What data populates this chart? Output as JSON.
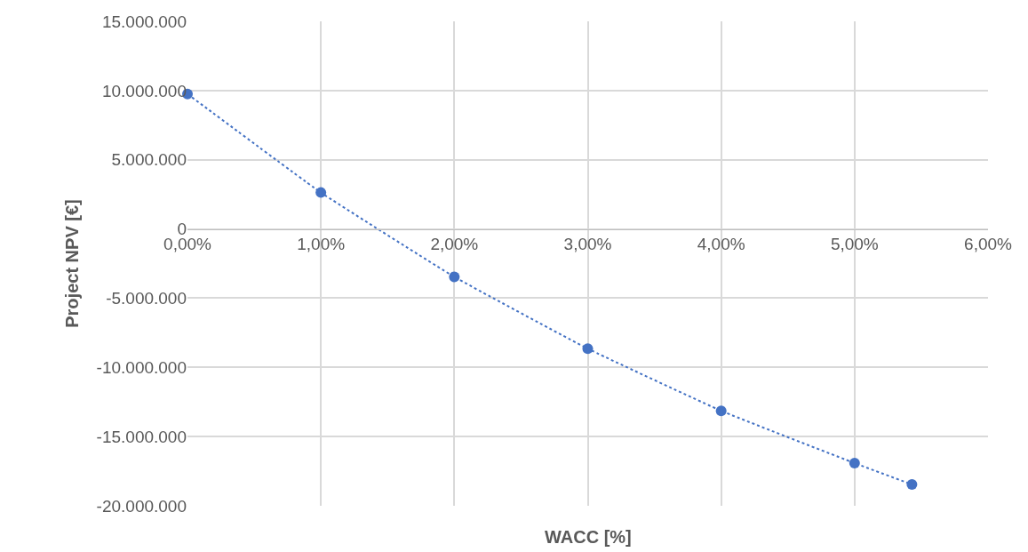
{
  "chart_data": {
    "type": "line",
    "xlabel": "WACC [%]",
    "ylabel": "Project NPV [€]",
    "x": [
      0,
      1,
      2,
      3,
      4,
      5,
      5.43
    ],
    "series": [
      {
        "color": "#4472c4",
        "values": [
          9750000,
          2630000,
          -3460000,
          -8650000,
          -13140000,
          -16920000,
          -18460000
        ]
      }
    ],
    "xlim": [
      0,
      6
    ],
    "xticks": [
      {
        "value": 0,
        "label": "0,00%"
      },
      {
        "value": 1,
        "label": "1,00%"
      },
      {
        "value": 2,
        "label": "2,00%"
      },
      {
        "value": 3,
        "label": "3,00%"
      },
      {
        "value": 4,
        "label": "4,00%"
      },
      {
        "value": 5,
        "label": "5,00%"
      },
      {
        "value": 6,
        "label": "6,00%"
      }
    ],
    "ylim": [
      -20000000,
      15000000
    ],
    "yticks": [
      {
        "value": -20000000,
        "label": "-20.000.000"
      },
      {
        "value": -15000000,
        "label": "-15.000.000"
      },
      {
        "value": -10000000,
        "label": "-10.000.000"
      },
      {
        "value": -5000000,
        "label": "-5.000.000"
      },
      {
        "value": 0,
        "label": "0"
      },
      {
        "value": 5000000,
        "label": "5.000.000"
      },
      {
        "value": 10000000,
        "label": "10.000.000"
      },
      {
        "value": 15000000,
        "label": "15.000.000"
      }
    ],
    "grid": true,
    "marker": "circle",
    "line_style": "dotted"
  }
}
